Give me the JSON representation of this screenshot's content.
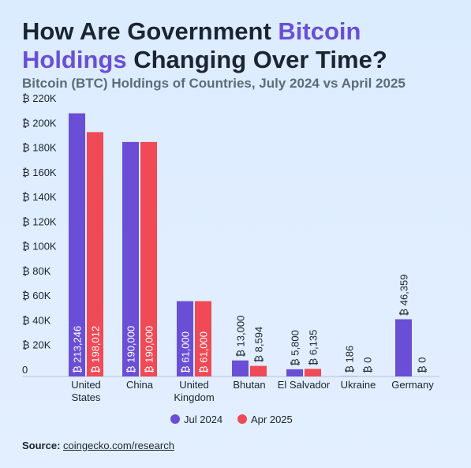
{
  "header": {
    "title_part1": "How Are Government ",
    "title_highlight1": "Bitcoin",
    "title_highlight2": "Holdings",
    "title_part2": " Changing Over Time?",
    "subtitle": "Bitcoin (BTC) Holdings of Countries, July 2024 vs April 2025"
  },
  "chart_data": {
    "type": "bar",
    "categories": [
      [
        "United",
        "States"
      ],
      [
        "China"
      ],
      [
        "United",
        "Kingdom"
      ],
      [
        "Bhutan"
      ],
      [
        "El Salvador"
      ],
      [
        "Ukraine"
      ],
      [
        "Germany"
      ]
    ],
    "series": [
      {
        "name": "Jul 2024",
        "color": "#6a4fd6",
        "values": [
          213246,
          190000,
          61000,
          13000,
          5800,
          186,
          46359
        ],
        "labels": [
          "₿ 213,246",
          "₿ 190,000",
          "₿ 61,000",
          "₿ 13,000",
          "₿ 5,800",
          "₿ 186",
          "₿ 46,359"
        ]
      },
      {
        "name": "Apr 2025",
        "color": "#ef4a56",
        "values": [
          198012,
          190000,
          61000,
          8594,
          6135,
          0,
          0
        ],
        "labels": [
          "₿ 198,012",
          "₿ 190,000",
          "₿ 61,000",
          "₿ 8,594",
          "₿ 6,135",
          "₿ 0",
          "₿ 0"
        ]
      }
    ],
    "ylim": [
      0,
      220000
    ],
    "yticks": [
      "0",
      "₿ 20K",
      "₿ 40K",
      "₿ 60K",
      "₿ 80K",
      "₿ 100K",
      "₿ 120K",
      "₿ 140K",
      "₿ 160K",
      "₿ 180K",
      "₿ 200K",
      "₿ 220K"
    ],
    "legend_position": "bottom"
  },
  "source": {
    "label": "Source:",
    "text": "coingecko.com/research"
  }
}
